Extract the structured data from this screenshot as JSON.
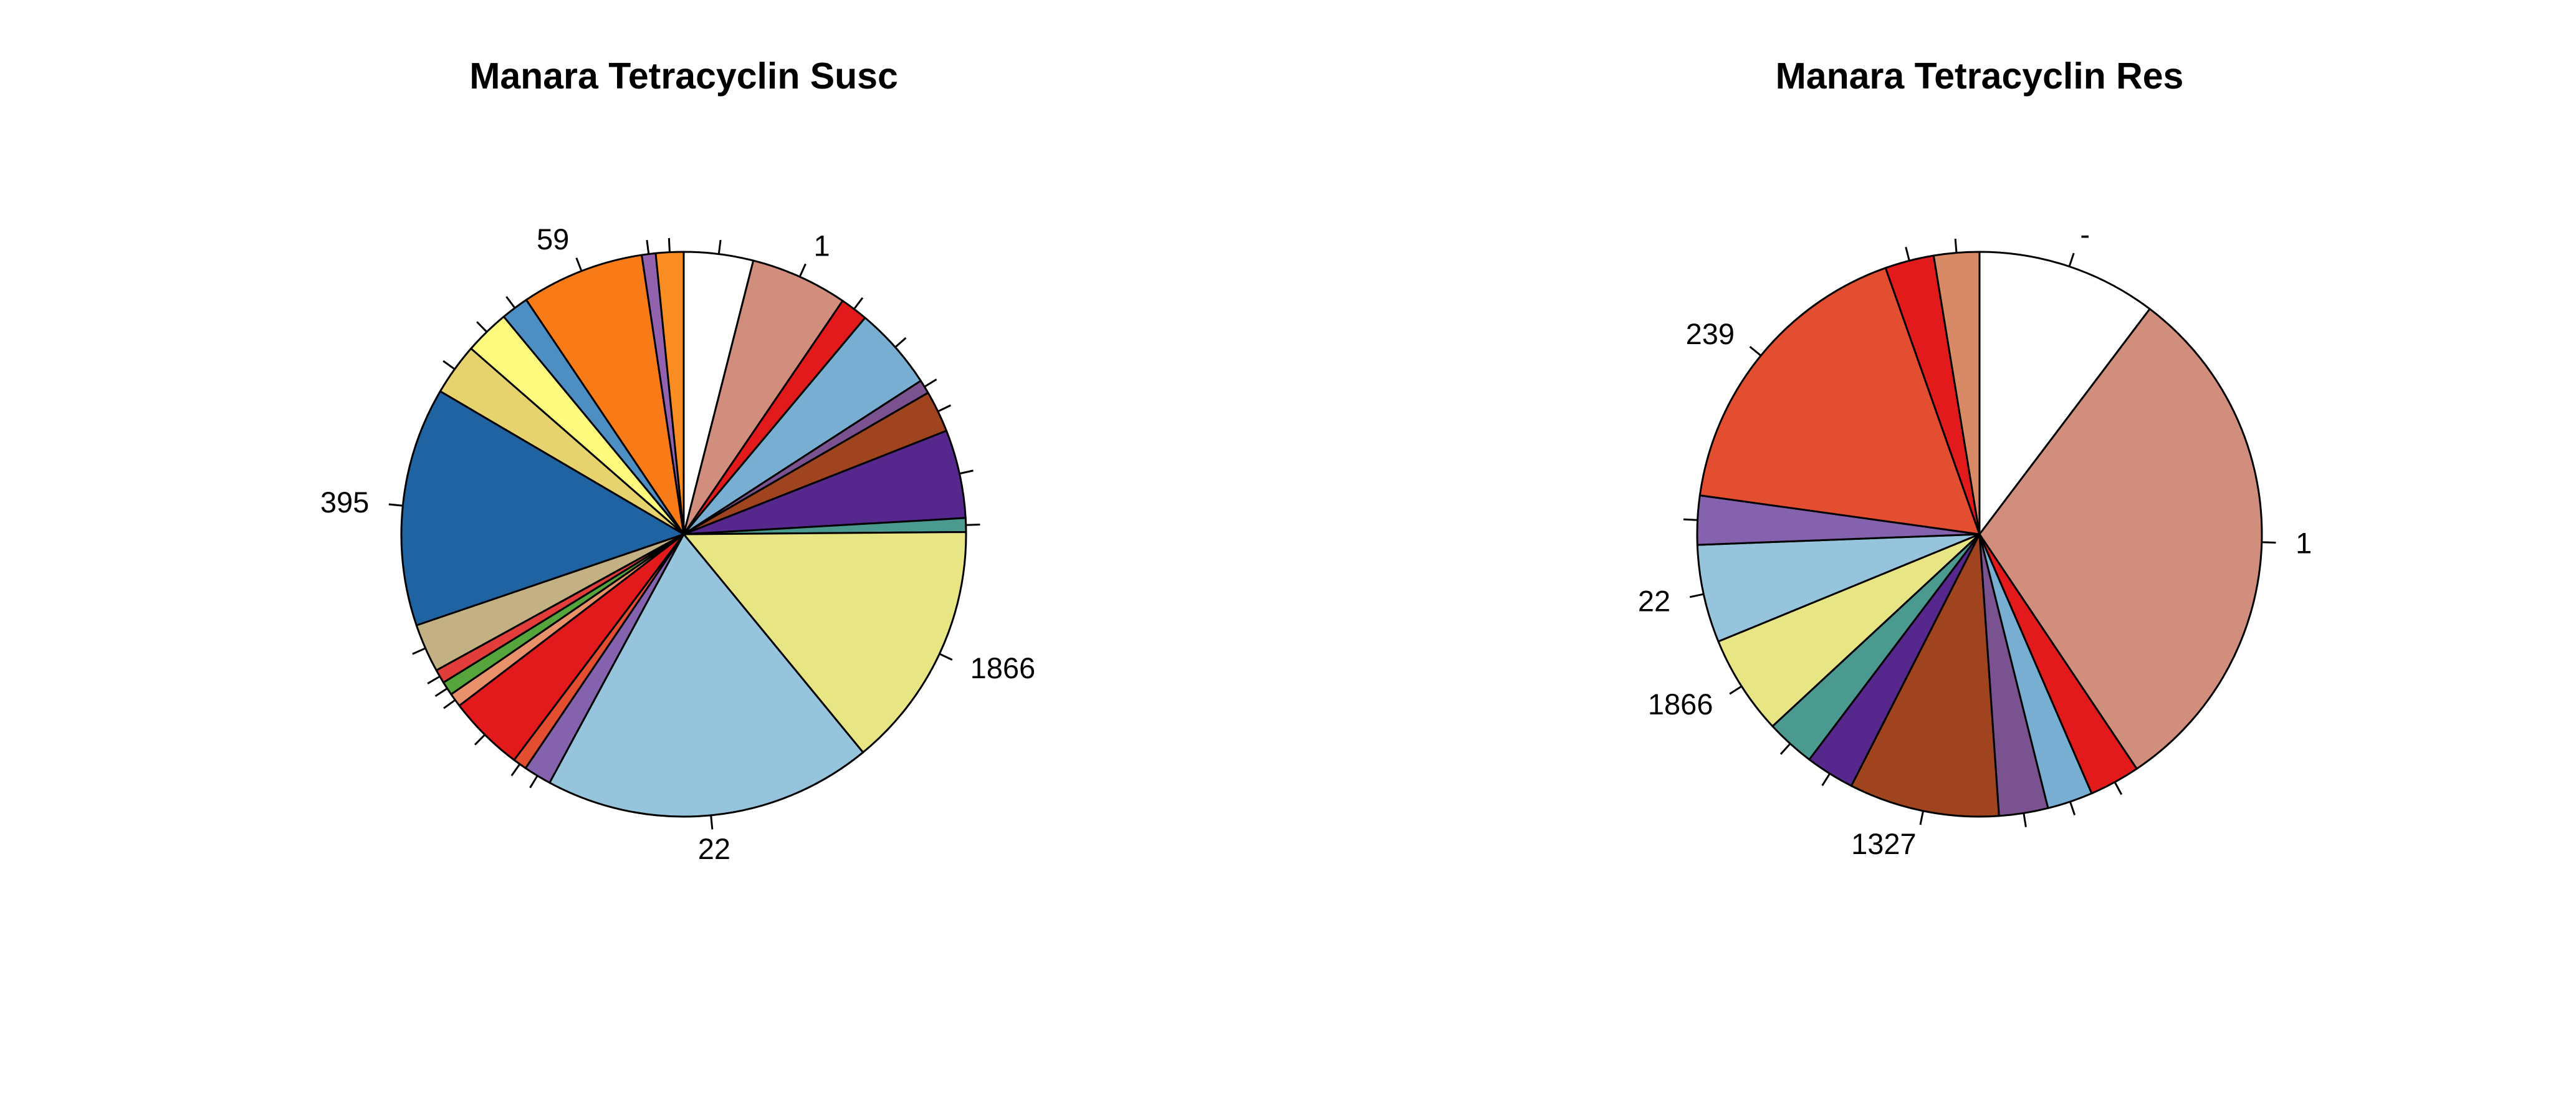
{
  "chart_data": [
    {
      "type": "pie",
      "title": "Manara Tetracyclin Susc",
      "direction": "clockwise",
      "start": "top",
      "slices": [
        {
          "label": "",
          "value": 4.0,
          "color": "#ffffff"
        },
        {
          "label": "1",
          "value": 5.6,
          "color": "#d28e7c"
        },
        {
          "label": "",
          "value": 1.6,
          "color": "#e31a1c"
        },
        {
          "label": "",
          "value": 4.8,
          "color": "#78aed2"
        },
        {
          "label": "",
          "value": 0.8,
          "color": "#7a5290"
        },
        {
          "label": "",
          "value": 2.4,
          "color": "#a0431f"
        },
        {
          "label": "",
          "value": 5.1,
          "color": "#56278c"
        },
        {
          "label": "",
          "value": 0.8,
          "color": "#4a9a8f"
        },
        {
          "label": "1866",
          "value": 14.3,
          "color": "#e8e585"
        },
        {
          "label": "22",
          "value": 19.0,
          "color": "#96c4dc"
        },
        {
          "label": "",
          "value": 1.6,
          "color": "#8462ad"
        },
        {
          "label": "",
          "value": 0.8,
          "color": "#e34d30"
        },
        {
          "label": "",
          "value": 4.4,
          "color": "#e31a1c"
        },
        {
          "label": "",
          "value": 0.8,
          "color": "#e9916b"
        },
        {
          "label": "",
          "value": 0.8,
          "color": "#55a43c"
        },
        {
          "label": "",
          "value": 0.8,
          "color": "#e23d3a"
        },
        {
          "label": "",
          "value": 2.8,
          "color": "#c4b183"
        },
        {
          "label": "395",
          "value": 13.8,
          "color": "#1f63a3"
        },
        {
          "label": "",
          "value": 3.0,
          "color": "#e7d36d"
        },
        {
          "label": "",
          "value": 2.6,
          "color": "#fdfa7e"
        },
        {
          "label": "",
          "value": 1.6,
          "color": "#4d8fc3"
        },
        {
          "label": "59",
          "value": 7.1,
          "color": "#f97b18"
        },
        {
          "label": "",
          "value": 0.8,
          "color": "#9362ae"
        },
        {
          "label": "",
          "value": 1.6,
          "color": "#f98d23"
        }
      ]
    },
    {
      "type": "pie",
      "title": "Manara Tetracyclin Res",
      "direction": "clockwise",
      "start": "top",
      "slices": [
        {
          "label": "-",
          "value": 10.3,
          "color": "#ffffff"
        },
        {
          "label": "1",
          "value": 30.3,
          "color": "#d28e7c"
        },
        {
          "label": "",
          "value": 2.9,
          "color": "#e31a1c"
        },
        {
          "label": "",
          "value": 2.6,
          "color": "#78aed2"
        },
        {
          "label": "",
          "value": 2.8,
          "color": "#7a5290"
        },
        {
          "label": "1327",
          "value": 8.6,
          "color": "#a0431f"
        },
        {
          "label": "",
          "value": 2.8,
          "color": "#56278c"
        },
        {
          "label": "",
          "value": 2.8,
          "color": "#4a9a8f"
        },
        {
          "label": "1866",
          "value": 5.7,
          "color": "#e8e585"
        },
        {
          "label": "22",
          "value": 5.6,
          "color": "#96c4dc"
        },
        {
          "label": "",
          "value": 2.8,
          "color": "#8462ad"
        },
        {
          "label": "239",
          "value": 17.4,
          "color": "#e34d30"
        },
        {
          "label": "",
          "value": 2.8,
          "color": "#e31a1c"
        },
        {
          "label": "",
          "value": 2.6,
          "color": "#d88966"
        }
      ]
    }
  ]
}
